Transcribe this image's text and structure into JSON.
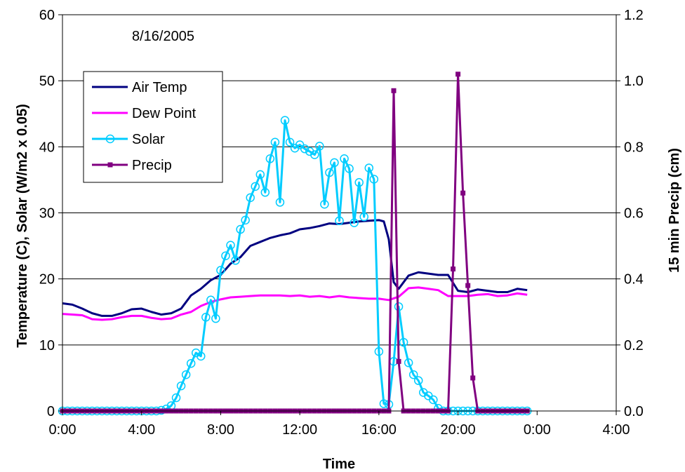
{
  "chart_data": {
    "type": "line",
    "annotation": "8/16/2005",
    "xlabel": "Time",
    "ylabel_left": "Temperature (C), Solar  (W/m2 x 0.05)",
    "ylabel_right": "15 min Precip (cm)",
    "x_ticks": [
      "0:00",
      "4:00",
      "8:00",
      "12:00",
      "16:00",
      "20:00",
      "0:00",
      "4:00"
    ],
    "x_range_hours": [
      0,
      28
    ],
    "y_left_ticks": [
      "0",
      "10",
      "20",
      "30",
      "40",
      "50",
      "60"
    ],
    "y_left_range": [
      0,
      60
    ],
    "y_right_ticks": [
      "0.0",
      "0.2",
      "0.4",
      "0.6",
      "0.8",
      "1.0",
      "1.2"
    ],
    "y_right_range": [
      0,
      1.2
    ],
    "grid": "horizontal",
    "legend_position": "top-left",
    "legend": [
      {
        "label": "Air Temp",
        "color": "#000080",
        "marker": "none"
      },
      {
        "label": "Dew Point",
        "color": "#FF00FF",
        "marker": "none"
      },
      {
        "label": "Solar",
        "color": "#00CCFF",
        "marker": "circle"
      },
      {
        "label": "Precip",
        "color": "#800080",
        "marker": "square"
      }
    ],
    "series": [
      {
        "name": "Air Temp",
        "axis": "left",
        "color": "#000080",
        "x": [
          0,
          0.5,
          1,
          1.5,
          2,
          2.5,
          3,
          3.5,
          4,
          4.5,
          5,
          5.5,
          6,
          6.5,
          7,
          7.5,
          8,
          8.5,
          9,
          9.5,
          10,
          10.5,
          11,
          11.5,
          12,
          12.5,
          13,
          13.5,
          14,
          14.5,
          15,
          15.5,
          16,
          16.25,
          16.5,
          16.75,
          17,
          17.5,
          18,
          18.5,
          19,
          19.5,
          20,
          20.5,
          21,
          21.5,
          22,
          22.5,
          23,
          23.5
        ],
        "y": [
          16.3,
          16.1,
          15.5,
          14.8,
          14.4,
          14.4,
          14.8,
          15.4,
          15.5,
          15.0,
          14.6,
          14.8,
          15.5,
          17.5,
          18.5,
          19.8,
          20.6,
          22.3,
          23.3,
          25.0,
          25.6,
          26.2,
          26.6,
          26.9,
          27.5,
          27.7,
          28.0,
          28.4,
          28.3,
          28.5,
          28.7,
          28.8,
          28.9,
          28.7,
          26.0,
          19.5,
          18.5,
          20.5,
          21.0,
          20.8,
          20.6,
          20.6,
          18.2,
          18.0,
          18.4,
          18.2,
          18.0,
          18.0,
          18.5,
          18.3
        ]
      },
      {
        "name": "Dew Point",
        "axis": "left",
        "color": "#FF00FF",
        "x": [
          0,
          0.5,
          1,
          1.5,
          2,
          2.5,
          3,
          3.5,
          4,
          4.5,
          5,
          5.5,
          6,
          6.5,
          7,
          7.5,
          8,
          8.5,
          9,
          9.5,
          10,
          10.5,
          11,
          11.5,
          12,
          12.5,
          13,
          13.5,
          14,
          14.5,
          15,
          15.5,
          16,
          16.5,
          17,
          17.5,
          18,
          18.5,
          19,
          19.5,
          20,
          20.5,
          21,
          21.5,
          22,
          22.5,
          23,
          23.5
        ],
        "y": [
          14.7,
          14.6,
          14.5,
          13.9,
          13.8,
          13.9,
          14.2,
          14.4,
          14.4,
          14.1,
          13.9,
          14.0,
          14.6,
          15.0,
          15.9,
          16.5,
          16.9,
          17.2,
          17.3,
          17.4,
          17.5,
          17.5,
          17.5,
          17.4,
          17.5,
          17.3,
          17.4,
          17.2,
          17.4,
          17.2,
          17.1,
          17.0,
          17.0,
          16.8,
          17.3,
          18.6,
          18.7,
          18.5,
          18.3,
          17.4,
          17.4,
          17.4,
          17.6,
          17.7,
          17.4,
          17.5,
          17.8,
          17.6
        ]
      },
      {
        "name": "Solar",
        "axis": "left",
        "color": "#00CCFF",
        "marker": "circle",
        "x": [
          0,
          0.25,
          0.5,
          0.75,
          1,
          1.25,
          1.5,
          1.75,
          2,
          2.25,
          2.5,
          2.75,
          3,
          3.25,
          3.5,
          3.75,
          4,
          4.25,
          4.5,
          4.75,
          5,
          5.25,
          5.5,
          5.75,
          6,
          6.25,
          6.5,
          6.75,
          7,
          7.25,
          7.5,
          7.75,
          8,
          8.25,
          8.5,
          8.75,
          9,
          9.25,
          9.5,
          9.75,
          10,
          10.25,
          10.5,
          10.75,
          11,
          11.25,
          11.5,
          11.75,
          12,
          12.25,
          12.5,
          12.75,
          13,
          13.25,
          13.5,
          13.75,
          14,
          14.25,
          14.5,
          14.75,
          15,
          15.25,
          15.5,
          15.75,
          16,
          16.25,
          16.5,
          16.75,
          17,
          17.25,
          17.5,
          17.75,
          18,
          18.25,
          18.5,
          18.75,
          19,
          19.25,
          19.5,
          19.75,
          20,
          20.25,
          20.5,
          20.75,
          21,
          21.25,
          21.5,
          21.75,
          22,
          22.25,
          22.5,
          22.75,
          23,
          23.25,
          23.5
        ],
        "y": [
          0,
          0,
          0,
          0,
          0,
          0,
          0,
          0,
          0,
          0,
          0,
          0,
          0,
          0,
          0,
          0,
          0,
          0,
          0,
          0,
          0.1,
          0.3,
          0.8,
          2.0,
          3.8,
          5.5,
          7.2,
          8.8,
          8.3,
          14.2,
          16.8,
          14.0,
          21.3,
          23.5,
          25.1,
          22.8,
          27.5,
          28.9,
          32.3,
          34.0,
          35.8,
          33.1,
          38.2,
          40.7,
          31.6,
          44.0,
          40.7,
          39.8,
          40.3,
          39.7,
          39.3,
          38.8,
          40.1,
          31.3,
          36.1,
          37.6,
          28.8,
          38.2,
          36.7,
          28.5,
          34.6,
          29.4,
          36.8,
          35.1,
          9.0,
          1.1,
          1.0,
          7.5,
          15.8,
          10.4,
          7.3,
          5.5,
          4.6,
          2.8,
          2.3,
          1.7,
          0.4,
          0,
          0,
          0,
          0,
          0,
          0,
          0,
          0,
          0,
          0,
          0,
          0,
          0,
          0,
          0,
          0,
          0,
          0
        ]
      },
      {
        "name": "Precip",
        "axis": "right",
        "color": "#800080",
        "marker": "square",
        "x": [
          0,
          0.25,
          0.5,
          0.75,
          1,
          1.25,
          1.5,
          1.75,
          2,
          2.25,
          2.5,
          2.75,
          3,
          3.25,
          3.5,
          3.75,
          4,
          4.25,
          4.5,
          4.75,
          5,
          5.25,
          5.5,
          5.75,
          6,
          6.25,
          6.5,
          6.75,
          7,
          7.25,
          7.5,
          7.75,
          8,
          8.25,
          8.5,
          8.75,
          9,
          9.25,
          9.5,
          9.75,
          10,
          10.25,
          10.5,
          10.75,
          11,
          11.25,
          11.5,
          11.75,
          12,
          12.25,
          12.5,
          12.75,
          13,
          13.25,
          13.5,
          13.75,
          14,
          14.25,
          14.5,
          14.75,
          15,
          15.25,
          15.5,
          15.75,
          16,
          16.25,
          16.5,
          16.75,
          17,
          17.25,
          17.5,
          17.75,
          18,
          18.25,
          18.5,
          18.75,
          19,
          19.25,
          19.5,
          19.75,
          20,
          20.25,
          20.5,
          20.75,
          21,
          21.25,
          21.5,
          21.75,
          22,
          22.25,
          22.5,
          22.75,
          23,
          23.25,
          23.5
        ],
        "y": [
          0,
          0,
          0,
          0,
          0,
          0,
          0,
          0,
          0,
          0,
          0,
          0,
          0,
          0,
          0,
          0,
          0,
          0,
          0,
          0,
          0,
          0,
          0,
          0,
          0,
          0,
          0,
          0,
          0,
          0,
          0,
          0,
          0,
          0,
          0,
          0,
          0,
          0,
          0,
          0,
          0,
          0,
          0,
          0,
          0,
          0,
          0,
          0,
          0,
          0,
          0,
          0,
          0,
          0,
          0,
          0,
          0,
          0,
          0,
          0,
          0,
          0,
          0,
          0,
          0,
          0,
          0,
          0.97,
          0.15,
          0,
          0,
          0,
          0,
          0,
          0,
          0,
          0,
          0,
          0,
          0.43,
          1.02,
          0.66,
          0.38,
          0.1,
          0,
          0,
          0,
          0,
          0,
          0,
          0,
          0,
          0,
          0,
          0
        ]
      }
    ]
  }
}
